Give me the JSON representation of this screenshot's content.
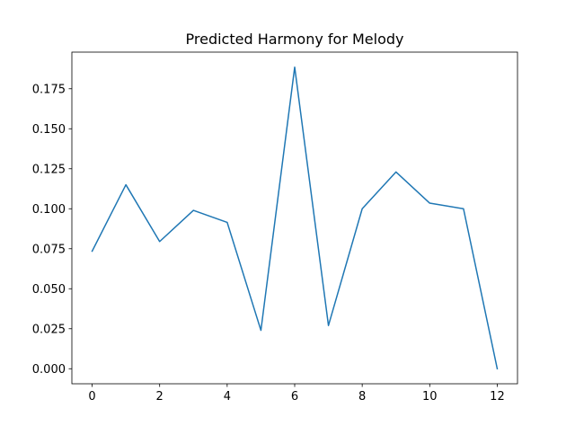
{
  "chart_data": {
    "type": "line",
    "title": "Predicted Harmony for Melody",
    "xlabel": "",
    "ylabel": "",
    "x": [
      0,
      1,
      2,
      3,
      4,
      5,
      6,
      7,
      8,
      9,
      10,
      11,
      12
    ],
    "series": [
      {
        "values": [
          0.0735,
          0.115,
          0.0795,
          0.099,
          0.0915,
          0.024,
          0.1885,
          0.027,
          0.1,
          0.123,
          0.1035,
          0.1,
          0.0
        ]
      }
    ],
    "xlim": [
      -0.6,
      12.6
    ],
    "ylim": [
      -0.0094,
      0.1979
    ],
    "xticks": [
      0,
      2,
      4,
      6,
      8,
      10,
      12
    ],
    "xtick_labels": [
      "0",
      "2",
      "4",
      "6",
      "8",
      "10",
      "12"
    ],
    "yticks": [
      0.0,
      0.025,
      0.05,
      0.075,
      0.1,
      0.125,
      0.15,
      0.175
    ],
    "ytick_labels": [
      "0.000",
      "0.025",
      "0.050",
      "0.075",
      "0.100",
      "0.125",
      "0.150",
      "0.175"
    ],
    "grid": false,
    "line_color": "#1f77b4"
  }
}
